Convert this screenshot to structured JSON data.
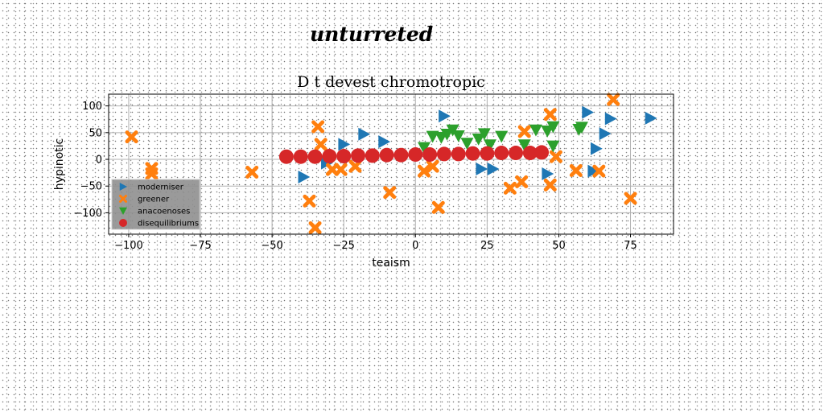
{
  "header": {
    "title": "unturreted"
  },
  "chart_data": {
    "type": "scatter",
    "title": "D t devest chromotropic",
    "xlabel": "teaism",
    "ylabel": "hypinotic",
    "xlim": [
      -107,
      90
    ],
    "ylim": [
      -140,
      122
    ],
    "xticks": [
      -100,
      -75,
      -50,
      -25,
      0,
      25,
      50,
      75
    ],
    "yticks": [
      100,
      50,
      0,
      -50,
      -100
    ],
    "xtick_labels": [
      "−100",
      "−75",
      "−50",
      "−25",
      "0",
      "25",
      "50",
      "75"
    ],
    "ytick_labels": [
      "100",
      "50",
      "0",
      "−50",
      "−100"
    ],
    "grid": true,
    "legend_position": "lower-left",
    "series": [
      {
        "name": "moderniser",
        "marker": "triangle-right",
        "color": "#1f77b4",
        "points": [
          [
            -39,
            -33
          ],
          [
            -31,
            -7
          ],
          [
            -25,
            28
          ],
          [
            -18,
            47
          ],
          [
            -11,
            33
          ],
          [
            10,
            81
          ],
          [
            23,
            -18
          ],
          [
            27,
            -18
          ],
          [
            46,
            -27
          ],
          [
            60,
            88
          ],
          [
            62,
            -22
          ],
          [
            63,
            20
          ],
          [
            66,
            48
          ],
          [
            68,
            76
          ],
          [
            82,
            77
          ]
        ]
      },
      {
        "name": "greener",
        "marker": "x",
        "color": "#ff7f0e",
        "points": [
          [
            -99,
            42
          ],
          [
            -92,
            -17
          ],
          [
            -92,
            -27
          ],
          [
            -57,
            -24
          ],
          [
            -37,
            -78
          ],
          [
            -35,
            -128
          ],
          [
            -34,
            61
          ],
          [
            -33,
            28
          ],
          [
            -29,
            -19
          ],
          [
            -26,
            -19
          ],
          [
            -21,
            -13
          ],
          [
            -9,
            -62
          ],
          [
            3,
            -22
          ],
          [
            6,
            -13
          ],
          [
            8,
            -90
          ],
          [
            33,
            -54
          ],
          [
            37,
            -42
          ],
          [
            38,
            52
          ],
          [
            47,
            84
          ],
          [
            47,
            -48
          ],
          [
            49,
            5
          ],
          [
            56,
            -21
          ],
          [
            64,
            -22
          ],
          [
            69,
            112
          ],
          [
            75,
            -73
          ]
        ]
      },
      {
        "name": "anacoenoses",
        "marker": "triangle-down",
        "color": "#2ca02c",
        "points": [
          [
            3,
            22
          ],
          [
            6,
            43
          ],
          [
            9,
            41
          ],
          [
            11,
            47
          ],
          [
            13,
            55
          ],
          [
            15,
            44
          ],
          [
            18,
            30
          ],
          [
            22,
            38
          ],
          [
            24,
            48
          ],
          [
            26,
            27
          ],
          [
            30,
            43
          ],
          [
            38,
            27
          ],
          [
            42,
            55
          ],
          [
            46,
            53
          ],
          [
            48,
            61
          ],
          [
            48,
            25
          ],
          [
            57,
            56
          ],
          [
            58,
            60
          ]
        ]
      },
      {
        "name": "disequilibriums",
        "marker": "circle",
        "color": "#d62728",
        "points": [
          [
            -45,
            5
          ],
          [
            -40,
            5
          ],
          [
            -35,
            5
          ],
          [
            -30,
            6
          ],
          [
            -25,
            6
          ],
          [
            -20,
            7
          ],
          [
            -15,
            7
          ],
          [
            -10,
            8
          ],
          [
            -5,
            8
          ],
          [
            0,
            9
          ],
          [
            5,
            9
          ],
          [
            10,
            10
          ],
          [
            15,
            10
          ],
          [
            20,
            11
          ],
          [
            25,
            11
          ],
          [
            30,
            12
          ],
          [
            35,
            12
          ],
          [
            40,
            12
          ],
          [
            44,
            13
          ]
        ]
      }
    ]
  }
}
